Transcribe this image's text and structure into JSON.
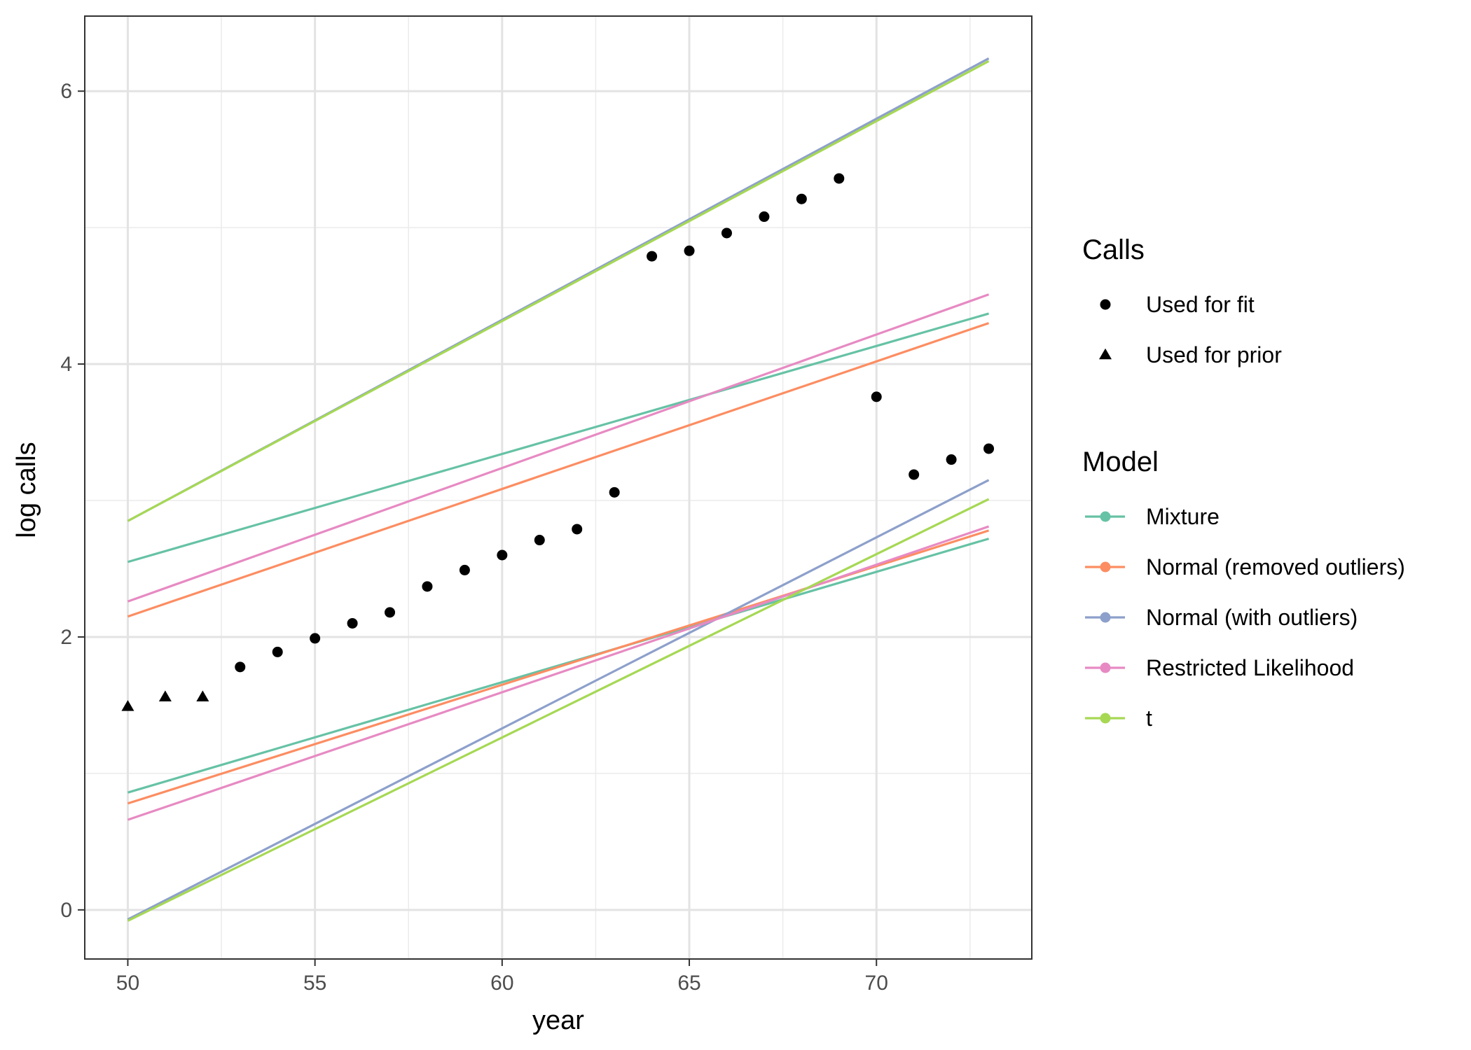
{
  "chart_data": {
    "type": "line",
    "title": "",
    "xlabel": "year",
    "ylabel": "log calls",
    "xlim": [
      48.85,
      74.15
    ],
    "ylim": [
      -0.36,
      6.55
    ],
    "x_major_ticks": [
      50,
      55,
      60,
      65,
      70
    ],
    "x_minor_ticks": [
      52.5,
      57.5,
      62.5,
      67.5,
      72.5
    ],
    "y_major_ticks": [
      0,
      2,
      4,
      6
    ],
    "y_minor_ticks": [
      1,
      3,
      5
    ],
    "x_tick_labels": [
      "50",
      "55",
      "60",
      "65",
      "70"
    ],
    "y_tick_labels": [
      "0",
      "2",
      "4",
      "6"
    ],
    "grid": true,
    "legend_position": "right",
    "points": {
      "legend_title": "Calls",
      "groups": [
        {
          "name": "Used for fit",
          "marker": "circle",
          "x": [
            53,
            54,
            55,
            56,
            57,
            58,
            59,
            60,
            61,
            62,
            63,
            64,
            65,
            66,
            67,
            68,
            69,
            70,
            71,
            72,
            73
          ],
          "y": [
            1.78,
            1.89,
            1.99,
            2.1,
            2.18,
            2.37,
            2.49,
            2.6,
            2.71,
            2.79,
            3.06,
            4.79,
            4.83,
            4.96,
            5.08,
            5.21,
            5.36,
            3.76,
            3.19,
            3.3,
            3.38
          ]
        },
        {
          "name": "Used for prior",
          "marker": "triangle",
          "x": [
            50,
            51,
            52
          ],
          "y": [
            1.49,
            1.56,
            1.56
          ]
        }
      ]
    },
    "lines": {
      "legend_title": "Model",
      "series": [
        {
          "name": "Mixture",
          "color": "#66c2a5",
          "x": [
            50,
            73
          ],
          "upper": [
            2.55,
            4.37
          ],
          "lower": [
            0.86,
            2.72
          ]
        },
        {
          "name": "Normal (removed outliers)",
          "color": "#fc8d62",
          "x": [
            50,
            73
          ],
          "upper": [
            2.15,
            4.3
          ],
          "lower": [
            0.78,
            2.78
          ]
        },
        {
          "name": "Normal (with outliers)",
          "color": "#8da0cb",
          "x": [
            50,
            73
          ],
          "upper": [
            2.85,
            6.24
          ],
          "lower": [
            -0.07,
            3.15
          ]
        },
        {
          "name": "Restricted Likelihood",
          "color": "#e78ac3",
          "x": [
            50,
            73
          ],
          "upper": [
            2.26,
            4.51
          ],
          "lower": [
            0.66,
            2.81
          ]
        },
        {
          "name": "t",
          "color": "#a6d854",
          "x": [
            50,
            73
          ],
          "upper": [
            2.85,
            6.22
          ],
          "lower": [
            -0.08,
            3.01
          ]
        }
      ]
    }
  }
}
